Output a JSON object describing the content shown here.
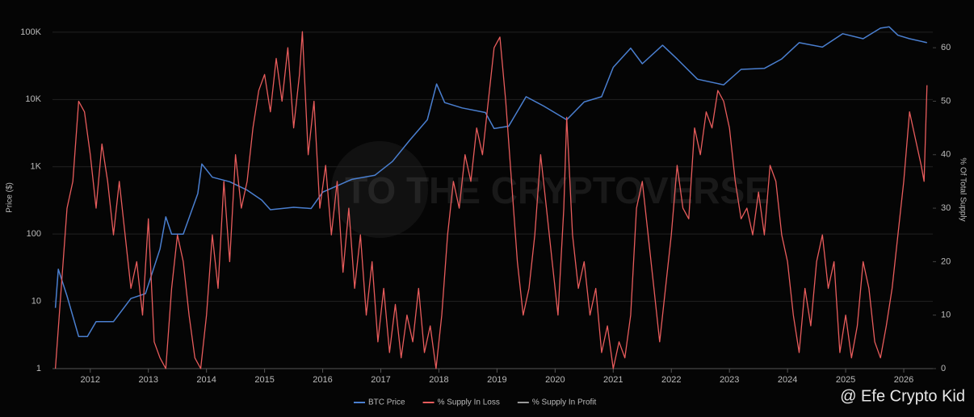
{
  "chart_data": {
    "type": "line",
    "ylabel": "Price ($)",
    "y2label": "% Of Total Supply",
    "watermark": "TO THE CRYPTOVERSE",
    "credit": "@ Efe Crypto Kid",
    "xlim": [
      2011.35,
      2026.5
    ],
    "xticks": [
      2012,
      2013,
      2014,
      2015,
      2016,
      2017,
      2018,
      2019,
      2020,
      2021,
      2022,
      2023,
      2024,
      2025,
      2026
    ],
    "ylim": [
      1,
      139000
    ],
    "ylog": true,
    "yticks": [
      1,
      10,
      100,
      {
        "value": 1000,
        "label": "1K"
      },
      {
        "value": 10000,
        "label": "10K"
      },
      {
        "value": 100000,
        "label": "100K"
      }
    ],
    "y2lim": [
      0,
      64.7
    ],
    "y2ticks": [
      0,
      10,
      20,
      30,
      40,
      50,
      60
    ],
    "grid": true,
    "legend": "bottom",
    "series": [
      {
        "name": "BTC Price",
        "color": "#4a7fd0",
        "axis": "y",
        "x": [
          2011.4,
          2011.45,
          2011.6,
          2011.8,
          2011.95,
          2012.1,
          2012.4,
          2012.7,
          2012.95,
          2013.2,
          2013.3,
          2013.4,
          2013.6,
          2013.85,
          2013.92,
          2014.1,
          2014.4,
          2014.7,
          2014.95,
          2015.1,
          2015.5,
          2015.8,
          2016.0,
          2016.5,
          2016.9,
          2017.2,
          2017.5,
          2017.8,
          2017.96,
          2018.1,
          2018.4,
          2018.8,
          2018.95,
          2019.2,
          2019.5,
          2019.8,
          2020.2,
          2020.5,
          2020.8,
          2021.0,
          2021.3,
          2021.5,
          2021.85,
          2022.1,
          2022.45,
          2022.9,
          2023.2,
          2023.6,
          2023.9,
          2024.2,
          2024.6,
          2024.95,
          2025.3,
          2025.6,
          2025.75,
          2025.9,
          2026.1,
          2026.4
        ],
        "values": [
          8,
          30,
          12,
          3,
          3,
          5,
          5,
          11,
          13,
          60,
          180,
          100,
          100,
          400,
          1100,
          700,
          600,
          450,
          320,
          230,
          250,
          240,
          420,
          650,
          750,
          1200,
          2500,
          5000,
          17000,
          9000,
          7500,
          6400,
          3700,
          4000,
          11000,
          8000,
          5000,
          9200,
          11000,
          30000,
          58000,
          34000,
          64000,
          40000,
          20000,
          16500,
          28000,
          29000,
          40000,
          70000,
          60000,
          95000,
          80000,
          115000,
          120000,
          90000,
          80000,
          70000
        ]
      },
      {
        "name": "% Supply In Loss",
        "color": "#e85c5c",
        "axis": "y2",
        "x": [
          2011.4,
          2011.5,
          2011.6,
          2011.7,
          2011.8,
          2011.9,
          2012.0,
          2012.1,
          2012.2,
          2012.3,
          2012.4,
          2012.5,
          2012.6,
          2012.7,
          2012.8,
          2012.9,
          2013.0,
          2013.1,
          2013.2,
          2013.3,
          2013.4,
          2013.5,
          2013.6,
          2013.7,
          2013.8,
          2013.9,
          2014.0,
          2014.1,
          2014.2,
          2014.3,
          2014.4,
          2014.5,
          2014.6,
          2014.7,
          2014.8,
          2014.9,
          2015.0,
          2015.1,
          2015.2,
          2015.3,
          2015.4,
          2015.5,
          2015.6,
          2015.65,
          2015.75,
          2015.85,
          2015.95,
          2016.05,
          2016.15,
          2016.25,
          2016.35,
          2016.45,
          2016.55,
          2016.65,
          2016.75,
          2016.85,
          2016.95,
          2017.05,
          2017.15,
          2017.25,
          2017.35,
          2017.45,
          2017.55,
          2017.65,
          2017.75,
          2017.85,
          2017.95,
          2018.05,
          2018.15,
          2018.25,
          2018.35,
          2018.45,
          2018.55,
          2018.65,
          2018.75,
          2018.9,
          2018.95,
          2019.05,
          2019.15,
          2019.25,
          2019.35,
          2019.45,
          2019.55,
          2019.65,
          2019.75,
          2019.85,
          2019.95,
          2020.05,
          2020.15,
          2020.2,
          2020.3,
          2020.4,
          2020.5,
          2020.6,
          2020.7,
          2020.8,
          2020.9,
          2021.0,
          2021.1,
          2021.2,
          2021.3,
          2021.4,
          2021.5,
          2021.6,
          2021.7,
          2021.8,
          2021.9,
          2022.0,
          2022.1,
          2022.2,
          2022.3,
          2022.4,
          2022.5,
          2022.6,
          2022.7,
          2022.8,
          2022.9,
          2023.0,
          2023.1,
          2023.2,
          2023.3,
          2023.4,
          2023.5,
          2023.6,
          2023.7,
          2023.8,
          2023.9,
          2024.0,
          2024.1,
          2024.2,
          2024.3,
          2024.4,
          2024.5,
          2024.6,
          2024.7,
          2024.8,
          2024.9,
          2025.0,
          2025.1,
          2025.2,
          2025.3,
          2025.4,
          2025.5,
          2025.6,
          2025.7,
          2025.8,
          2025.9,
          2026.0,
          2026.1,
          2026.2,
          2026.3,
          2026.35,
          2026.4
        ],
        "values": [
          0,
          15,
          30,
          35,
          50,
          48,
          40,
          30,
          42,
          35,
          25,
          35,
          25,
          15,
          20,
          10,
          28,
          5,
          2,
          0,
          15,
          25,
          20,
          10,
          2,
          0,
          10,
          25,
          15,
          35,
          20,
          40,
          30,
          35,
          45,
          52,
          55,
          48,
          58,
          50,
          60,
          45,
          55,
          63,
          40,
          50,
          30,
          38,
          25,
          35,
          18,
          30,
          15,
          25,
          10,
          20,
          5,
          15,
          3,
          12,
          2,
          10,
          5,
          15,
          3,
          8,
          0,
          10,
          25,
          35,
          30,
          40,
          35,
          45,
          40,
          55,
          60,
          62,
          50,
          35,
          20,
          10,
          15,
          25,
          40,
          30,
          20,
          10,
          30,
          47,
          25,
          15,
          20,
          10,
          15,
          3,
          8,
          0,
          5,
          2,
          10,
          30,
          35,
          25,
          15,
          5,
          15,
          25,
          38,
          30,
          28,
          45,
          40,
          48,
          45,
          52,
          50,
          45,
          35,
          28,
          30,
          25,
          33,
          25,
          38,
          35,
          25,
          20,
          10,
          3,
          15,
          8,
          20,
          25,
          15,
          20,
          3,
          10,
          2,
          8,
          20,
          15,
          5,
          2,
          8,
          15,
          25,
          35,
          48,
          43,
          38,
          35,
          53
        ]
      },
      {
        "name": "% Supply In Profit",
        "color": "#9a9a9a",
        "axis": "y2"
      }
    ]
  }
}
